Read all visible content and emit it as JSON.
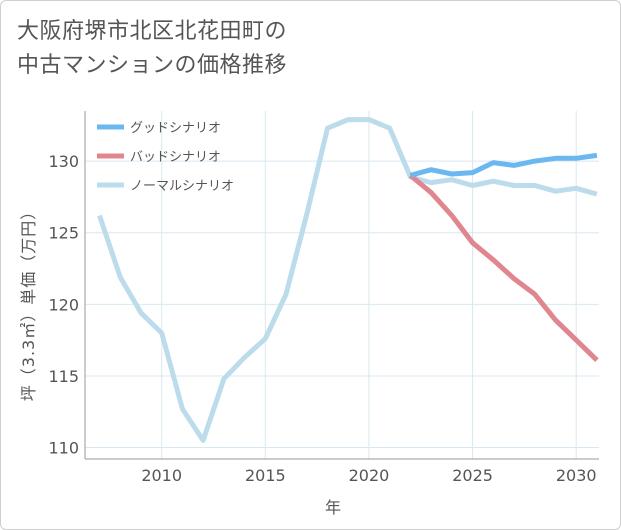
{
  "title_line1": "大阪府堺市北区北花田町の",
  "title_line2": "中古マンションの価格推移",
  "chart_data": {
    "type": "line",
    "xlabel": "年",
    "ylabel": "坪（3.3㎡）単価（万円）",
    "xlim": [
      2006.3,
      2031.1
    ],
    "ylim": [
      109.2,
      133.5
    ],
    "xticks": [
      2010,
      2015,
      2020,
      2025,
      2030
    ],
    "yticks": [
      110,
      115,
      120,
      125,
      130
    ],
    "grid": true,
    "legend_position": "top-left",
    "series": [
      {
        "name": "グッドシナリオ",
        "color": "#6bb8f0",
        "x": [
          2022,
          2023,
          2024,
          2025,
          2026,
          2027,
          2028,
          2029,
          2030,
          2031
        ],
        "values": [
          129.0,
          129.4,
          129.1,
          129.2,
          129.9,
          129.7,
          130.0,
          130.2,
          130.2,
          130.4
        ]
      },
      {
        "name": "バッドシナリオ",
        "color": "#e0868e",
        "x": [
          2022,
          2023,
          2024,
          2025,
          2026,
          2027,
          2028,
          2029,
          2030,
          2031
        ],
        "values": [
          129.0,
          127.8,
          126.2,
          124.3,
          123.1,
          121.8,
          120.7,
          118.9,
          117.5,
          116.1
        ]
      },
      {
        "name": "ノーマルシナリオ",
        "color": "#bcdcec",
        "x": [
          2007,
          2008,
          2009,
          2010,
          2011,
          2012,
          2013,
          2014,
          2015,
          2016,
          2017,
          2018,
          2019,
          2020,
          2021,
          2022,
          2023,
          2024,
          2025,
          2026,
          2027,
          2028,
          2029,
          2030,
          2031
        ],
        "values": [
          126.2,
          121.9,
          119.4,
          118.0,
          112.7,
          110.5,
          114.8,
          116.3,
          117.6,
          120.7,
          126.3,
          132.3,
          132.9,
          132.9,
          132.3,
          128.9,
          128.5,
          128.7,
          128.3,
          128.6,
          128.3,
          128.3,
          127.9,
          128.1,
          127.7
        ]
      }
    ]
  }
}
